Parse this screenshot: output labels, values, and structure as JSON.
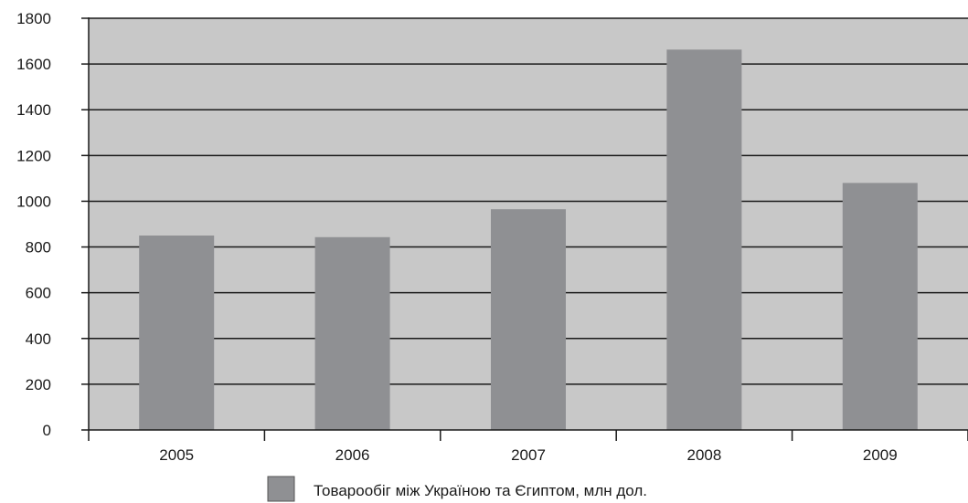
{
  "chart_data": {
    "type": "bar",
    "categories": [
      "2005",
      "2006",
      "2007",
      "2008",
      "2009"
    ],
    "series": [
      {
        "name": "Товарообіг між Україною та Єгиптом, млн дол.",
        "values": [
          850,
          843,
          965,
          1663,
          1080
        ]
      }
    ],
    "ylim": [
      0,
      1800
    ],
    "yticks": [
      0,
      200,
      400,
      600,
      800,
      1000,
      1200,
      1400,
      1600,
      1800
    ],
    "grid": true,
    "legend_position": "bottom-center",
    "colors": {
      "plot_background": "#c8c8c8",
      "bar": "#8f9093",
      "legend_swatch": "#8f9093",
      "gridline": "#1a1a1a",
      "text": "#1a1a1a"
    }
  }
}
